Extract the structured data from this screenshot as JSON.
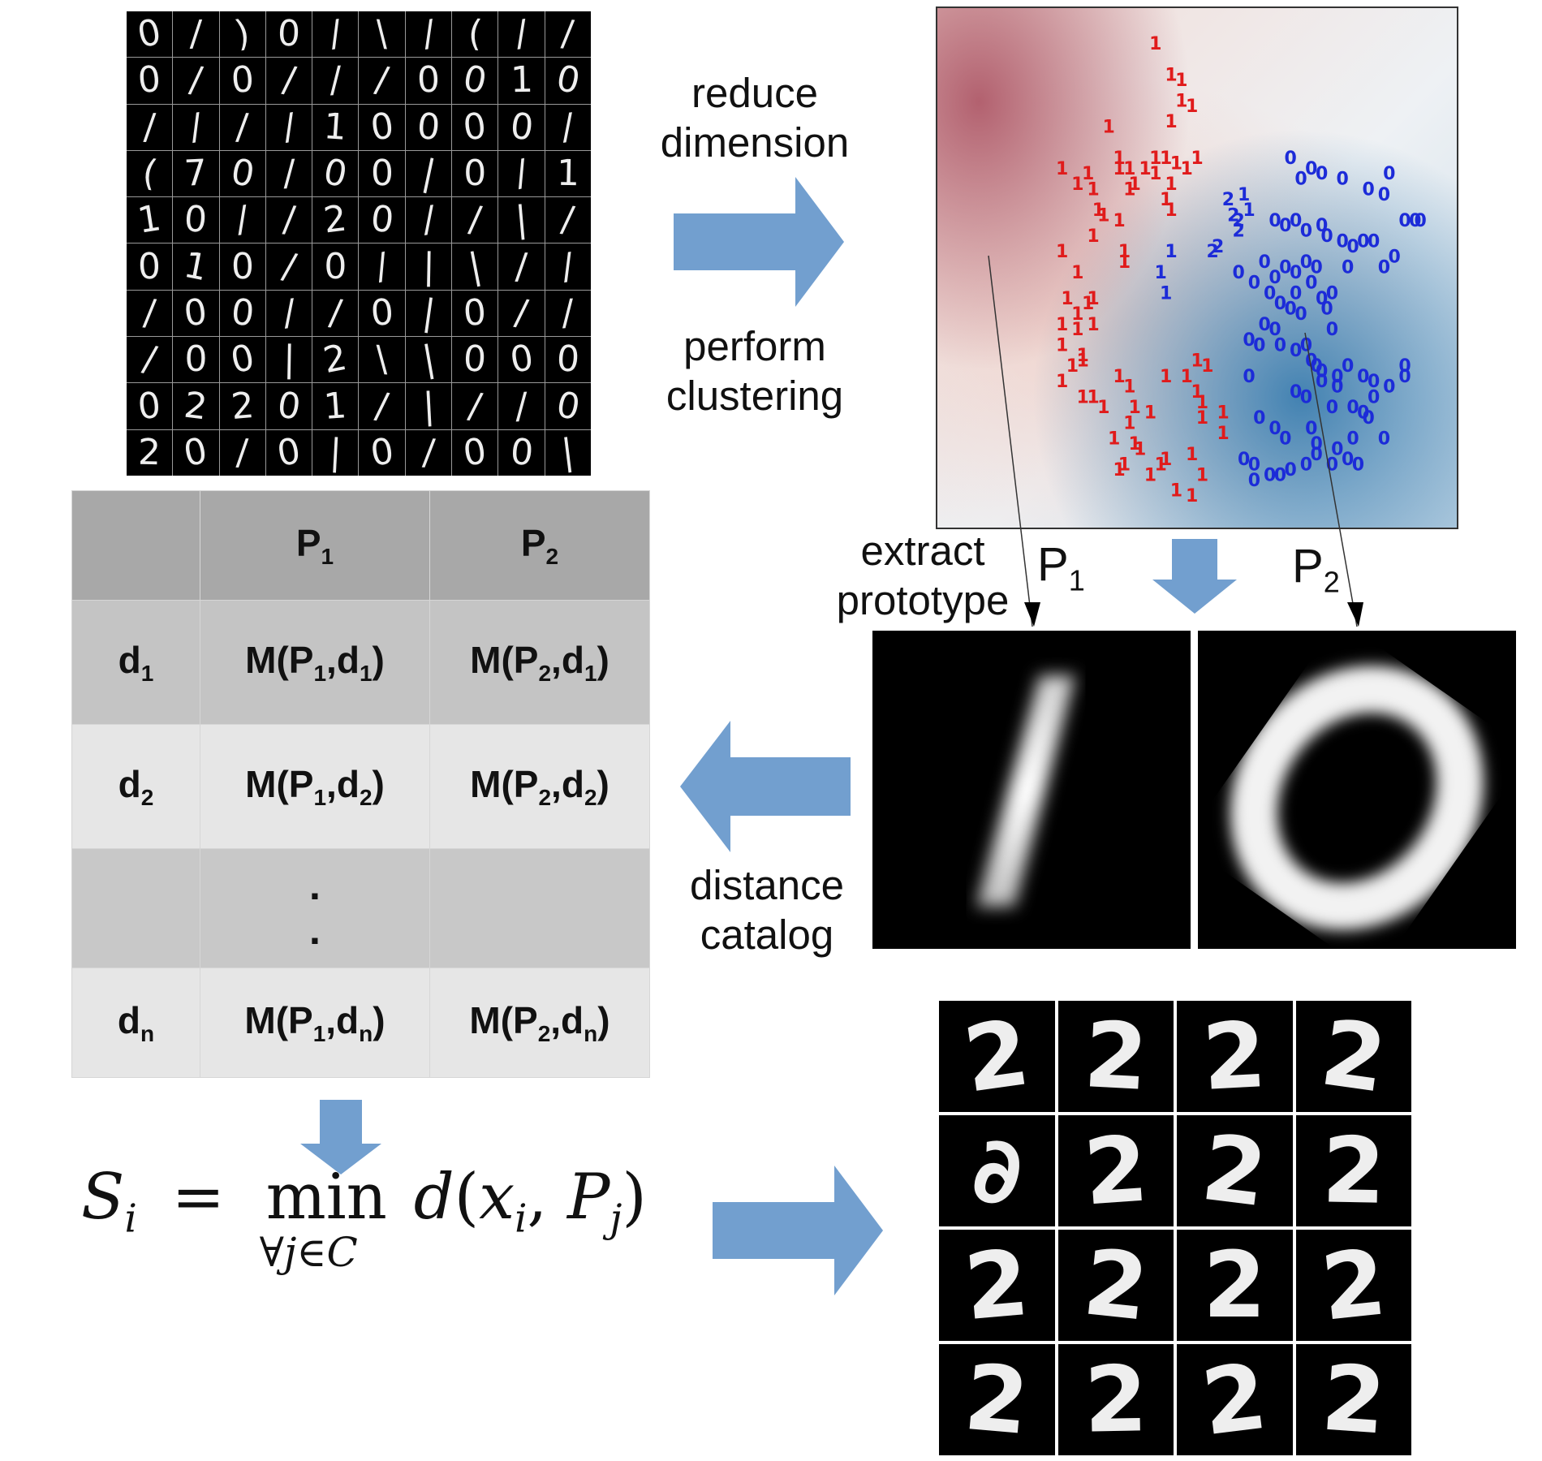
{
  "input_grid_digits": [
    [
      "0",
      "/",
      ")",
      "0",
      "/",
      "\\",
      "/",
      "(",
      "/",
      "/"
    ],
    [
      "0",
      "/",
      "0",
      "/",
      "/",
      "/",
      "0",
      "0",
      "1",
      "0"
    ],
    [
      "/",
      "/",
      "/",
      "/",
      "1",
      "0",
      "0",
      "0",
      "0",
      "/"
    ],
    [
      "(",
      "7",
      "0",
      "/",
      "0",
      "0",
      "|",
      "0",
      "/",
      "1"
    ],
    [
      "1",
      "0",
      "/",
      "/",
      "2",
      "0",
      "/",
      "/",
      "|",
      "/"
    ],
    [
      "0",
      "1",
      "0",
      "/",
      "0",
      "/",
      "|",
      "|",
      "/",
      "/"
    ],
    [
      "/",
      "0",
      "0",
      "/",
      "/",
      "0",
      "|",
      "0",
      "/",
      "/"
    ],
    [
      "/",
      "0",
      "0",
      "|",
      "2",
      "\\",
      "|",
      "0",
      "0",
      "0"
    ],
    [
      "0",
      "2",
      "2",
      "0",
      "1",
      "/",
      "|",
      "/",
      "/",
      "0"
    ],
    [
      "2",
      "0",
      "/",
      "0",
      "|",
      "0",
      "/",
      "0",
      "0",
      "|"
    ]
  ],
  "labels": {
    "reduce_dimension": "reduce\ndimension",
    "perform_clustering": "perform\nclustering",
    "extract_prototype": "extract\nprototype",
    "distance_catalog": "distance\ncatalog",
    "p1_letter": "P",
    "p1_sub": "1",
    "p2_letter": "P",
    "p2_sub": "2"
  },
  "table": {
    "header": [
      "",
      "P_1",
      "P_2"
    ],
    "rows": [
      [
        "d_1",
        "M(P_1,d_1)",
        "M(P_2,d_1)"
      ],
      [
        "d_2",
        "M(P_1,d_2)",
        "M(P_2,d_2)"
      ],
      [
        "",
        "·",
        ""
      ],
      [
        "d_n",
        "M(P_1,d_n)",
        "M(P_2,d_n)"
      ]
    ]
  },
  "formula": {
    "lhs": "S",
    "lhs_sub": "i",
    "eq": "=",
    "op": "min",
    "under": "∀j∈C",
    "rhs_func": "d",
    "rhs_arg1": "x",
    "rhs_arg1_sub": "i",
    "rhs_arg2": "P",
    "rhs_arg2_sub": "j"
  },
  "output_grid_digits": [
    "2",
    "2",
    "2",
    "2",
    "∂",
    "2",
    "2",
    "2",
    "2",
    "2",
    "2",
    "2",
    "2",
    "2",
    "2",
    "2"
  ],
  "colors": {
    "arrow": "#729fcf",
    "cluster_one": "#e01b1b",
    "cluster_zero": "#1c2bd8",
    "cluster_two": "#1c2bd8"
  },
  "scatter": {
    "ones_red": [
      [
        42,
        8
      ],
      [
        45,
        14
      ],
      [
        47,
        15
      ],
      [
        47,
        19
      ],
      [
        49,
        20
      ],
      [
        45,
        23
      ],
      [
        33,
        24
      ],
      [
        35,
        30
      ],
      [
        35,
        32
      ],
      [
        37,
        32
      ],
      [
        37,
        36
      ],
      [
        38,
        35
      ],
      [
        40,
        32
      ],
      [
        42,
        30
      ],
      [
        42,
        33
      ],
      [
        44,
        30
      ],
      [
        46,
        31
      ],
      [
        48,
        32
      ],
      [
        50,
        30
      ],
      [
        45,
        35
      ],
      [
        45,
        40
      ],
      [
        44,
        38
      ],
      [
        24,
        32
      ],
      [
        27,
        35
      ],
      [
        29,
        33
      ],
      [
        30,
        36
      ],
      [
        31,
        40
      ],
      [
        32,
        41
      ],
      [
        30,
        45
      ],
      [
        35,
        42
      ],
      [
        36,
        48
      ],
      [
        36,
        50
      ],
      [
        24,
        48
      ],
      [
        27,
        52
      ],
      [
        29,
        58
      ],
      [
        25,
        57
      ],
      [
        27,
        60
      ],
      [
        30,
        57
      ],
      [
        30,
        62
      ],
      [
        28,
        69
      ],
      [
        26,
        70
      ],
      [
        24,
        73
      ],
      [
        28,
        76
      ],
      [
        30,
        76
      ],
      [
        32,
        78
      ],
      [
        35,
        72
      ],
      [
        37,
        74
      ],
      [
        38,
        78
      ],
      [
        41,
        79
      ],
      [
        44,
        72
      ],
      [
        50,
        69
      ],
      [
        52,
        70
      ],
      [
        48,
        72
      ],
      [
        50,
        75
      ],
      [
        51,
        80
      ],
      [
        55,
        83
      ],
      [
        51,
        77
      ],
      [
        37,
        81
      ],
      [
        38,
        85
      ],
      [
        39,
        86
      ],
      [
        36,
        89
      ],
      [
        34,
        84
      ],
      [
        35,
        90
      ],
      [
        41,
        91
      ],
      [
        43,
        89
      ],
      [
        46,
        94
      ],
      [
        49,
        95
      ],
      [
        51,
        91
      ],
      [
        49,
        87
      ],
      [
        55,
        79
      ],
      [
        24,
        66
      ],
      [
        27,
        63
      ],
      [
        24,
        62
      ],
      [
        28,
        68
      ],
      [
        44,
        88
      ]
    ],
    "ones_blue": [
      [
        43,
        52
      ],
      [
        44,
        56
      ],
      [
        45,
        48
      ],
      [
        59,
        37
      ],
      [
        60,
        40
      ]
    ],
    "twos_blue": [
      [
        56,
        38
      ],
      [
        57,
        41
      ],
      [
        58,
        44
      ],
      [
        58,
        42
      ],
      [
        54,
        47
      ],
      [
        53,
        48
      ]
    ],
    "zeros_blue": [
      [
        68,
        30
      ],
      [
        70,
        34
      ],
      [
        72,
        32
      ],
      [
        74,
        33
      ],
      [
        78,
        34
      ],
      [
        83,
        36
      ],
      [
        86,
        37
      ],
      [
        87,
        33
      ],
      [
        90,
        42
      ],
      [
        92,
        42
      ],
      [
        93,
        42
      ],
      [
        65,
        42
      ],
      [
        67,
        43
      ],
      [
        69,
        42
      ],
      [
        71,
        44
      ],
      [
        74,
        43
      ],
      [
        75,
        45
      ],
      [
        78,
        46
      ],
      [
        80,
        47
      ],
      [
        82,
        46
      ],
      [
        84,
        46
      ],
      [
        63,
        50
      ],
      [
        65,
        53
      ],
      [
        67,
        51
      ],
      [
        69,
        52
      ],
      [
        71,
        50
      ],
      [
        73,
        51
      ],
      [
        72,
        54
      ],
      [
        69,
        56
      ],
      [
        74,
        57
      ],
      [
        76,
        56
      ],
      [
        79,
        51
      ],
      [
        86,
        51
      ],
      [
        88,
        49
      ],
      [
        58,
        52
      ],
      [
        61,
        54
      ],
      [
        64,
        56
      ],
      [
        66,
        58
      ],
      [
        68,
        59
      ],
      [
        70,
        60
      ],
      [
        75,
        59
      ],
      [
        76,
        63
      ],
      [
        63,
        62
      ],
      [
        65,
        63
      ],
      [
        60,
        65
      ],
      [
        62,
        66
      ],
      [
        66,
        66
      ],
      [
        69,
        67
      ],
      [
        71,
        66
      ],
      [
        72,
        69
      ],
      [
        73,
        70
      ],
      [
        74,
        71
      ],
      [
        77,
        72
      ],
      [
        79,
        70
      ],
      [
        82,
        72
      ],
      [
        84,
        73
      ],
      [
        87,
        74
      ],
      [
        90,
        70
      ],
      [
        90,
        72
      ],
      [
        60,
        72
      ],
      [
        69,
        75
      ],
      [
        71,
        76
      ],
      [
        74,
        73
      ],
      [
        76,
        78
      ],
      [
        77,
        74
      ],
      [
        80,
        78
      ],
      [
        82,
        79
      ],
      [
        84,
        76
      ],
      [
        62,
        80
      ],
      [
        65,
        82
      ],
      [
        67,
        84
      ],
      [
        72,
        82
      ],
      [
        73,
        85
      ],
      [
        77,
        86
      ],
      [
        80,
        84
      ],
      [
        83,
        80
      ],
      [
        86,
        84
      ],
      [
        59,
        88
      ],
      [
        61,
        89
      ],
      [
        64,
        91
      ],
      [
        66,
        91
      ],
      [
        68,
        90
      ],
      [
        71,
        89
      ],
      [
        73,
        87
      ],
      [
        76,
        89
      ],
      [
        79,
        88
      ],
      [
        81,
        89
      ],
      [
        61,
        92
      ]
    ]
  }
}
